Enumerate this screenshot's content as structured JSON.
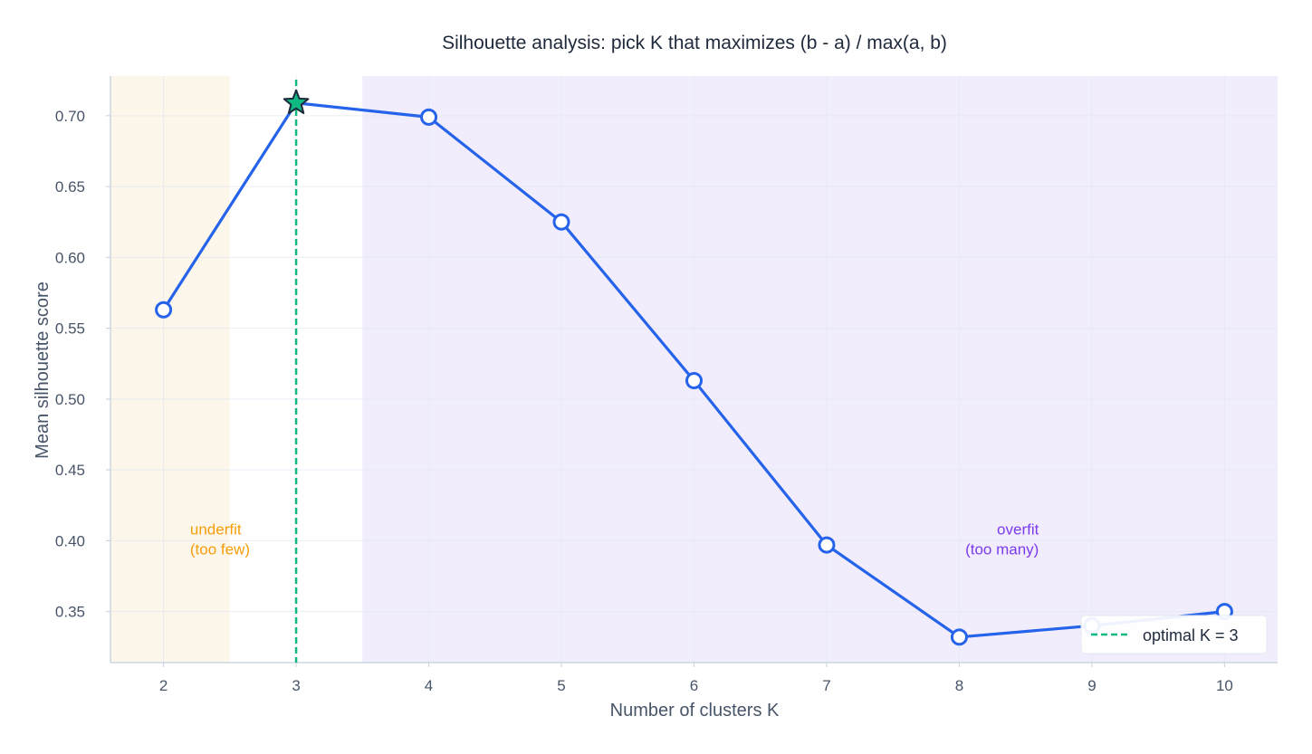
{
  "chart_data": {
    "type": "line",
    "title": "Silhouette analysis: pick K that maximizes (b - a) / max(a, b)",
    "xlabel": "Number of clusters K",
    "ylabel": "Mean silhouette score",
    "x": [
      2,
      3,
      4,
      5,
      6,
      7,
      8,
      9,
      10
    ],
    "x_tick_labels": [
      "2",
      "3",
      "4",
      "5",
      "6",
      "7",
      "8",
      "9",
      "10"
    ],
    "xlim": [
      1.6,
      10.4
    ],
    "ylim": [
      0.314,
      0.728
    ],
    "y_ticks": [
      0.35,
      0.4,
      0.45,
      0.5,
      0.55,
      0.6,
      0.65,
      0.7
    ],
    "y_tick_labels": [
      "0.35",
      "0.40",
      "0.45",
      "0.50",
      "0.55",
      "0.60",
      "0.65",
      "0.70"
    ],
    "grid": true,
    "series": [
      {
        "values": [
          0.563,
          0.709,
          0.699,
          0.625,
          0.513,
          0.397,
          0.332,
          0.34,
          0.35
        ],
        "color": "#2563eb"
      }
    ],
    "optimal": {
      "k": 3,
      "value": 0.709,
      "marker": "star",
      "color": "#10b981",
      "legend_label": "optimal K = 3"
    },
    "regions": [
      {
        "name": "underfit",
        "x_range": [
          1.6,
          2.5
        ],
        "color": "#fdf6ea",
        "label_lines": [
          "underfit",
          "(too few)"
        ],
        "label_color": "#f59e0b"
      },
      {
        "name": "overfit",
        "x_range": [
          3.5,
          10.4
        ],
        "color": "#f1edfc",
        "label_lines": [
          "overfit",
          "(too many)"
        ],
        "label_color": "#7c3aed"
      }
    ],
    "legend_position": "bottom-right"
  }
}
